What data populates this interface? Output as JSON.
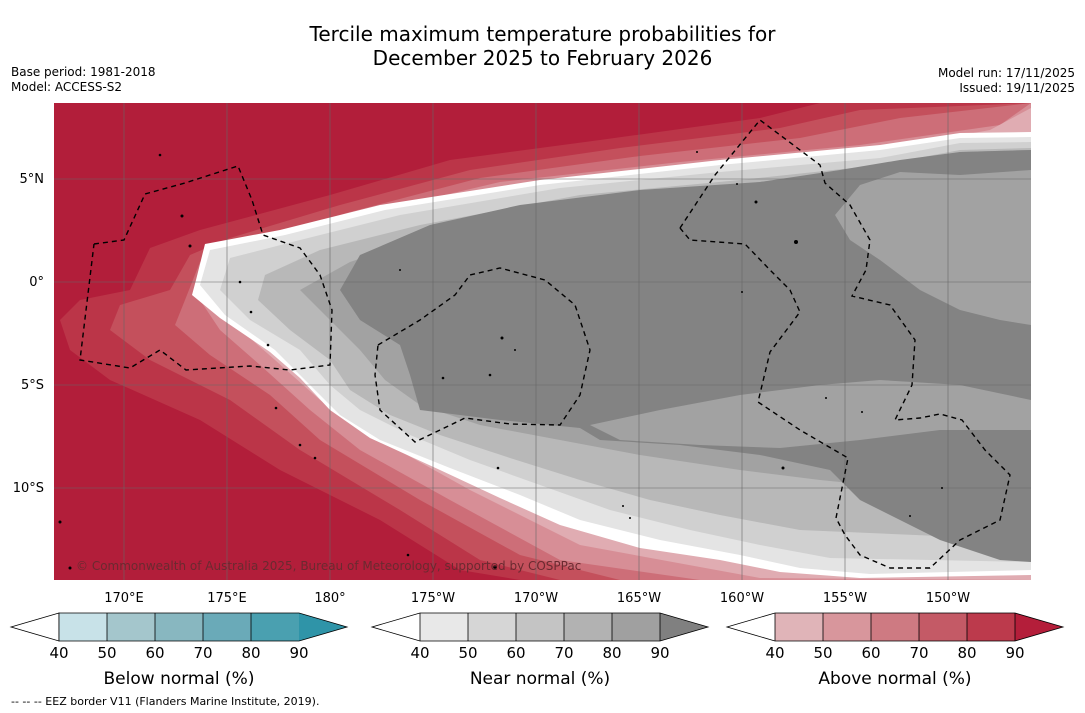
{
  "title": {
    "line1": "Tercile maximum temperature probabilities for",
    "line2": "December 2025 to February 2026"
  },
  "meta_left": {
    "base_period": "Base period: 1981-2018",
    "model": "Model: ACCESS-S2"
  },
  "meta_right": {
    "model_run": "Model run: 17/11/2025",
    "issued": "Issued: 19/11/2025"
  },
  "map": {
    "lon_ticks": [
      "170°E",
      "175°E",
      "180°",
      "175°W",
      "170°W",
      "165°W",
      "160°W",
      "155°W",
      "150°W"
    ],
    "lat_ticks": [
      "5°N",
      "0°",
      "5°S",
      "10°S"
    ],
    "copyright": "© Commonwealth of Australia 2025, Bureau of Meteorology, supported by COSPPac"
  },
  "colorbars": [
    {
      "label": "Below normal (%)",
      "ticks": [
        "40",
        "50",
        "60",
        "70",
        "80",
        "90"
      ],
      "colors": [
        "#c8e2e8",
        "#a4c6cc",
        "#88b7c0",
        "#6aaab8",
        "#4aa0b0",
        "#2f94a8"
      ]
    },
    {
      "label": "Near normal (%)",
      "ticks": [
        "40",
        "50",
        "60",
        "70",
        "80",
        "90"
      ],
      "colors": [
        "#e8e8e8",
        "#d6d6d6",
        "#c4c4c4",
        "#b2b2b2",
        "#a0a0a0",
        "#808080"
      ]
    },
    {
      "label": "Above normal (%)",
      "ticks": [
        "40",
        "50",
        "60",
        "70",
        "80",
        "90"
      ],
      "colors": [
        "#e0b4b8",
        "#d8969c",
        "#ce7a82",
        "#c45a66",
        "#bc3a4c",
        "#b41e3a"
      ]
    }
  ],
  "footer": "--  --  -- EEZ border V11 (Flanders Marine Institute, 2019)."
}
